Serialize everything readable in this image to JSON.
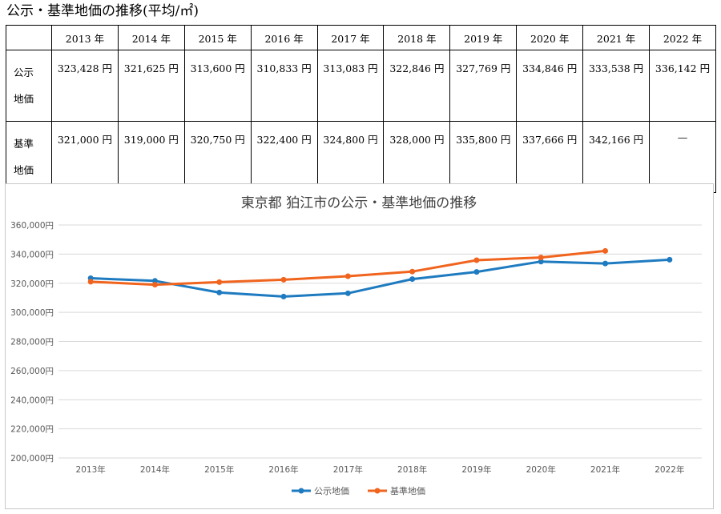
{
  "heading": "公示・基準地価の推移(平均/㎡)",
  "table": {
    "corner": "",
    "columns": [
      "2013 年",
      "2014 年",
      "2015 年",
      "2016 年",
      "2017 年",
      "2018 年",
      "2019 年",
      "2020 年",
      "2021 年",
      "2022 年"
    ],
    "rows": [
      {
        "label": "公示\n地価",
        "values": [
          "323,428 円",
          "321,625 円",
          "313,600 円",
          "310,833 円",
          "313,083 円",
          "322,846 円",
          "327,769 円",
          "334,846 円",
          "333,538 円",
          "336,142 円"
        ]
      },
      {
        "label": "基準\n地価",
        "values": [
          "321,000 円",
          "319,000 円",
          "320,750 円",
          "322,400 円",
          "324,800 円",
          "328,000 円",
          "335,800 円",
          "337,666 円",
          "342,166 円",
          "—"
        ]
      }
    ]
  },
  "chart_data": {
    "type": "line",
    "title": "東京都 狛江市の公示・基準地価の推移",
    "categories": [
      "2013年",
      "2014年",
      "2015年",
      "2016年",
      "2017年",
      "2018年",
      "2019年",
      "2020年",
      "2021年",
      "2022年"
    ],
    "series": [
      {
        "name": "公示地価",
        "color": "#1f7bc0",
        "values": [
          323428,
          321625,
          313600,
          310833,
          313083,
          322846,
          327769,
          334846,
          333538,
          336142
        ]
      },
      {
        "name": "基準地価",
        "color": "#f0641e",
        "values": [
          321000,
          319000,
          320750,
          322400,
          324800,
          328000,
          335800,
          337666,
          342166,
          null
        ]
      }
    ],
    "ylim": [
      200000,
      360000
    ],
    "ytick_step": 20000,
    "ytick_labels": [
      "200,000円",
      "220,000円",
      "240,000円",
      "260,000円",
      "280,000円",
      "300,000円",
      "320,000円",
      "340,000円",
      "360,000円"
    ],
    "grid": true,
    "legend": "bottom",
    "xlabel": "",
    "ylabel": ""
  }
}
